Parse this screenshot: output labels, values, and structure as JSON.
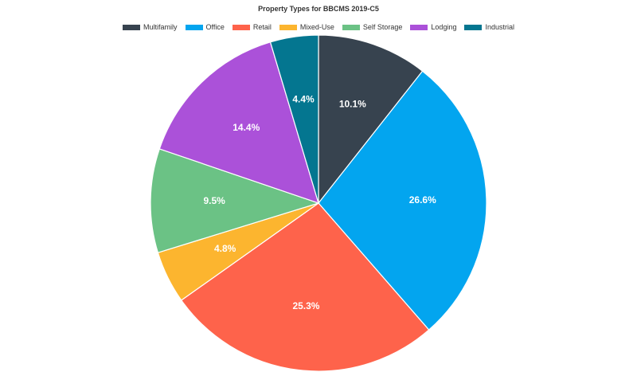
{
  "colors": {
    "Multifamily": "#37434f",
    "Office": "#03a5ef",
    "Retail": "#fe634b",
    "Mixed-Use": "#fcb52f",
    "Self Storage": "#6bc285",
    "Lodging": "#ab51d9",
    "Industrial": "#047690"
  },
  "chart_data": {
    "type": "pie",
    "title": "Property Types for BBCMS 2019-C5",
    "legend_position": "top",
    "slices": [
      {
        "label": "Multifamily",
        "value": 10.1,
        "display": "10.1%"
      },
      {
        "label": "Office",
        "value": 26.6,
        "display": "26.6%"
      },
      {
        "label": "Retail",
        "value": 25.3,
        "display": "25.3%"
      },
      {
        "label": "Mixed-Use",
        "value": 4.8,
        "display": "4.8%"
      },
      {
        "label": "Self Storage",
        "value": 9.5,
        "display": "9.5%"
      },
      {
        "label": "Lodging",
        "value": 14.4,
        "display": "14.4%"
      },
      {
        "label": "Industrial",
        "value": 4.4,
        "display": "4.4%"
      }
    ]
  }
}
